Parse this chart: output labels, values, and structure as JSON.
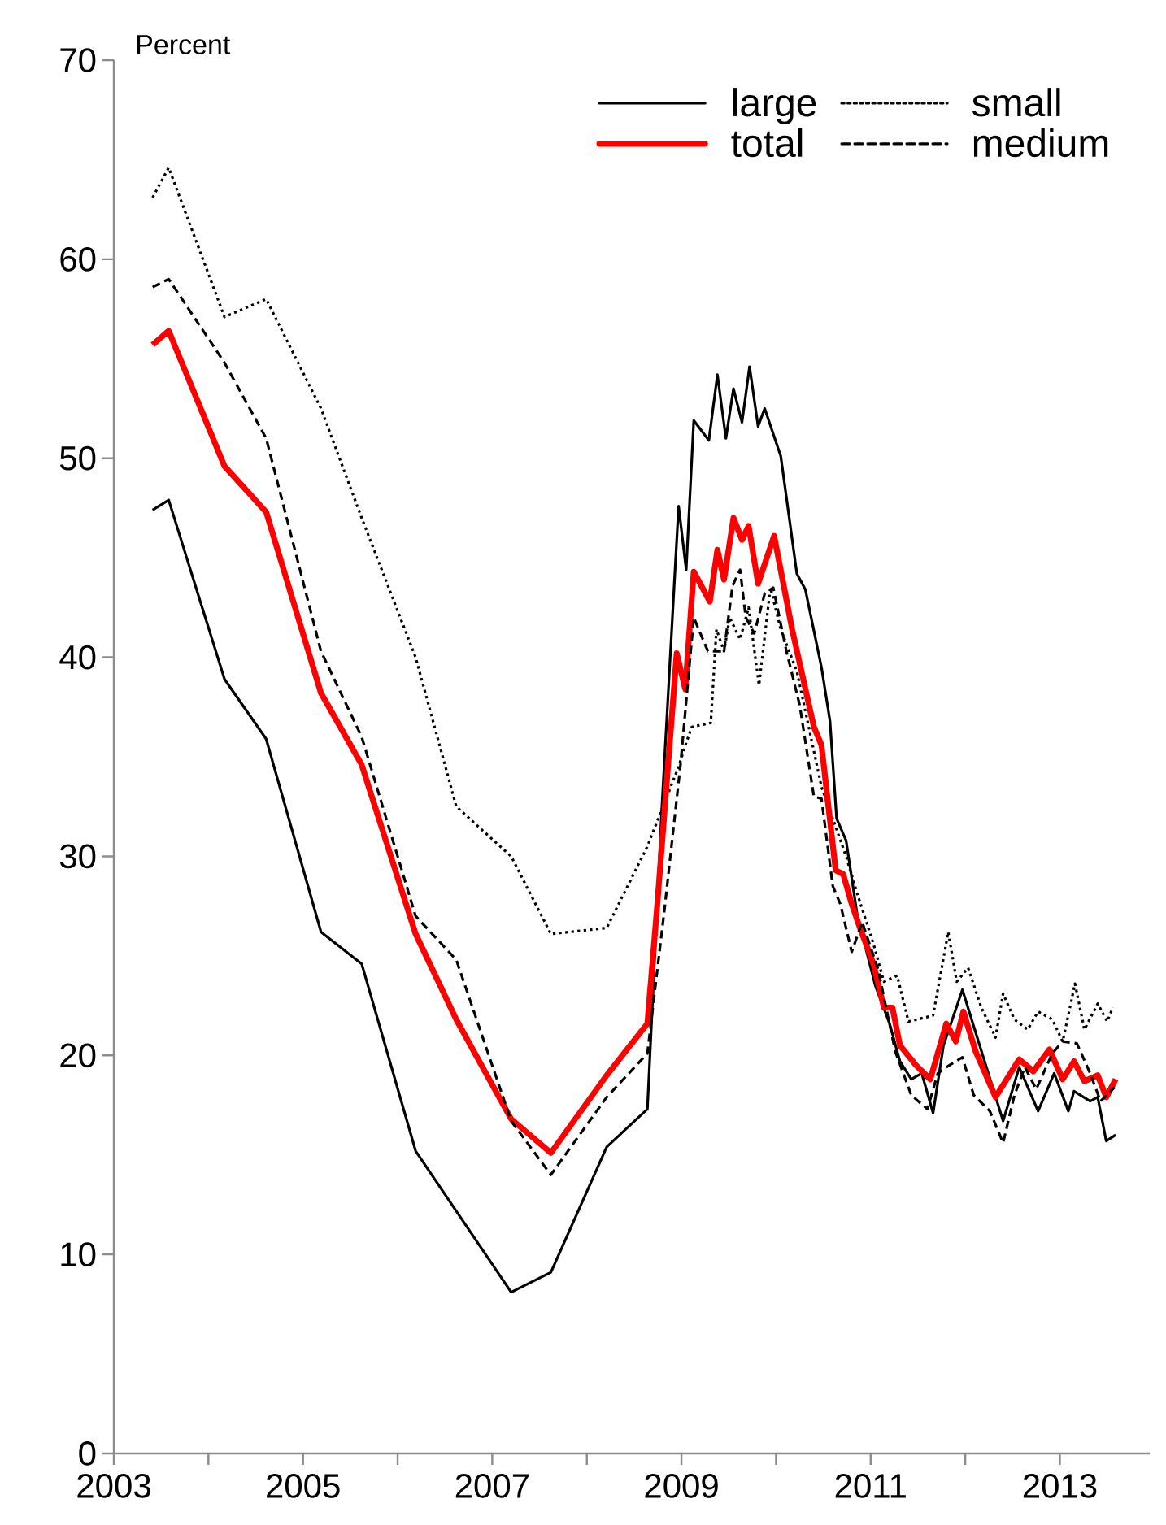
{
  "chart_data": {
    "type": "line",
    "ylabel": "Percent",
    "xlim": [
      2003,
      2013.95
    ],
    "ylim": [
      0,
      70
    ],
    "xticks": [
      2003,
      {
        "value": 2004,
        "label": null
      },
      2005,
      {
        "value": 2006,
        "label": null
      },
      2007,
      {
        "value": 2008,
        "label": null
      },
      2009,
      {
        "value": 2010,
        "label": null
      },
      2011,
      {
        "value": 2012,
        "label": null
      },
      2013
    ],
    "yticks": [
      0,
      10,
      20,
      30,
      40,
      50,
      60,
      70
    ],
    "grid": false,
    "legend": "top right",
    "marker": "none",
    "series": [
      {
        "name": "large",
        "color": "#000000",
        "line_style": "solid",
        "x": [
          2003.41,
          2003.58,
          2004.17,
          2004.61,
          2005.19,
          2005.62,
          2006.19,
          2007.2,
          2007.62,
          2008.21,
          2008.64,
          2008.79,
          2008.97,
          2009.05,
          2009.13,
          2009.29,
          2009.38,
          2009.47,
          2009.55,
          2009.64,
          2009.72,
          2009.81,
          2009.88,
          2010.05,
          2010.22,
          2010.31,
          2010.48,
          2010.57,
          2010.64,
          2010.74,
          2010.86,
          2011.05,
          2011.2,
          2011.31,
          2011.43,
          2011.54,
          2011.66,
          2011.77,
          2011.97,
          2012.4,
          2012.57,
          2012.77,
          2012.94,
          2013.09,
          2013.15,
          2013.32,
          2013.4,
          2013.49,
          2013.59
        ],
        "values": [
          47.4,
          47.9,
          38.9,
          35.9,
          26.2,
          24.6,
          15.2,
          8.1,
          9.1,
          15.4,
          17.3,
          32.2,
          47.6,
          44.4,
          51.9,
          50.9,
          54.2,
          51.0,
          53.5,
          51.8,
          54.6,
          51.6,
          52.5,
          50.1,
          44.2,
          43.4,
          39.5,
          36.8,
          31.9,
          30.8,
          27.0,
          23.5,
          21.6,
          19.7,
          18.8,
          19.1,
          17.1,
          20.5,
          23.3,
          16.7,
          19.4,
          17.2,
          19.1,
          17.2,
          18.2,
          17.7,
          17.9,
          15.7,
          16.0
        ]
      },
      {
        "name": "small",
        "color": "#000000",
        "line_style": "dotted",
        "x": [
          2003.41,
          2003.58,
          2004.17,
          2004.61,
          2005.19,
          2005.62,
          2006.19,
          2006.62,
          2007.2,
          2007.62,
          2008.21,
          2008.64,
          2008.97,
          2009.05,
          2009.11,
          2009.31,
          2009.37,
          2009.45,
          2009.51,
          2009.62,
          2009.71,
          2009.82,
          2009.94,
          2010.05,
          2010.22,
          2010.48,
          2010.74,
          2010.86,
          2011.03,
          2011.14,
          2011.28,
          2011.4,
          2011.66,
          2011.82,
          2011.91,
          2012.03,
          2012.17,
          2012.32,
          2012.4,
          2012.52,
          2012.66,
          2012.77,
          2012.92,
          2013.03,
          2013.16,
          2013.26,
          2013.4,
          2013.5,
          2013.56
        ],
        "values": [
          63.1,
          64.6,
          57.1,
          58.0,
          52.5,
          47.0,
          40.0,
          32.5,
          30.0,
          26.1,
          26.4,
          30.5,
          34.5,
          35.7,
          36.5,
          36.7,
          41.4,
          40.3,
          42.0,
          40.9,
          42.5,
          38.6,
          43.5,
          41.4,
          39.3,
          33.5,
          30.0,
          28.1,
          25.6,
          23.7,
          24.0,
          21.7,
          22.0,
          26.2,
          23.7,
          24.4,
          22.4,
          20.9,
          23.1,
          21.8,
          21.3,
          22.2,
          21.8,
          20.7,
          23.6,
          21.3,
          22.6,
          21.7,
          22.4
        ]
      },
      {
        "name": "total",
        "color": "#ff0000",
        "line_style": "solid",
        "x": [
          2003.41,
          2003.58,
          2004.17,
          2004.61,
          2005.19,
          2005.62,
          2006.19,
          2006.62,
          2007.2,
          2007.62,
          2008.21,
          2008.64,
          2008.74,
          2008.95,
          2009.04,
          2009.13,
          2009.3,
          2009.38,
          2009.45,
          2009.55,
          2009.64,
          2009.71,
          2009.81,
          2009.98,
          2010.17,
          2010.4,
          2010.48,
          2010.63,
          2010.71,
          2010.8,
          2010.88,
          2011.03,
          2011.14,
          2011.23,
          2011.31,
          2011.48,
          2011.63,
          2011.8,
          2011.9,
          2011.98,
          2012.11,
          2012.32,
          2012.57,
          2012.72,
          2012.89,
          2013.03,
          2013.15,
          2013.26,
          2013.4,
          2013.49,
          2013.59
        ],
        "values": [
          55.7,
          56.4,
          49.6,
          47.3,
          38.2,
          34.6,
          26.1,
          21.8,
          16.8,
          15.1,
          19.0,
          21.6,
          27.3,
          40.2,
          38.4,
          44.3,
          42.8,
          45.4,
          43.9,
          47.0,
          45.9,
          46.6,
          43.7,
          46.1,
          41.4,
          36.5,
          35.6,
          29.3,
          29.1,
          27.6,
          26.5,
          24.6,
          22.4,
          22.4,
          20.5,
          19.5,
          18.8,
          21.6,
          20.7,
          22.2,
          20.2,
          17.9,
          19.8,
          19.2,
          20.3,
          18.8,
          19.7,
          18.7,
          19.0,
          17.9,
          18.8
        ]
      },
      {
        "name": "medium",
        "color": "#000000",
        "line_style": "dashed",
        "x": [
          2003.41,
          2003.58,
          2004.17,
          2004.61,
          2005.19,
          2005.62,
          2006.19,
          2006.62,
          2007.2,
          2007.62,
          2008.21,
          2008.64,
          2008.82,
          2008.99,
          2009.13,
          2009.28,
          2009.45,
          2009.54,
          2009.62,
          2009.68,
          2009.77,
          2009.88,
          2009.97,
          2010.11,
          2010.25,
          2010.4,
          2010.48,
          2010.6,
          2010.68,
          2010.8,
          2010.91,
          2011.08,
          2011.26,
          2011.43,
          2011.6,
          2011.71,
          2011.83,
          2011.97,
          2012.09,
          2012.26,
          2012.4,
          2012.52,
          2012.63,
          2012.75,
          2012.92,
          2013.03,
          2013.18,
          2013.32,
          2013.43,
          2013.58
        ],
        "values": [
          58.6,
          59.0,
          54.8,
          51.0,
          40.3,
          36.0,
          27.0,
          24.8,
          16.7,
          14.0,
          17.9,
          20.1,
          27.3,
          34.6,
          42.0,
          40.3,
          40.3,
          43.6,
          44.4,
          42.0,
          41.2,
          43.2,
          43.5,
          40.3,
          37.6,
          33.0,
          32.9,
          28.5,
          27.6,
          25.2,
          26.7,
          24.3,
          20.2,
          18.0,
          17.3,
          19.1,
          19.5,
          19.9,
          18.0,
          17.2,
          15.6,
          18.0,
          19.4,
          18.3,
          20.1,
          20.7,
          20.6,
          19.1,
          17.7,
          18.4
        ]
      }
    ]
  }
}
